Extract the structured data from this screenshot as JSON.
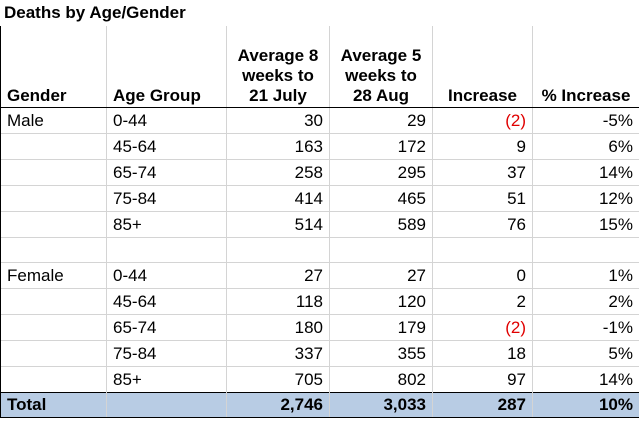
{
  "title": "Deaths by Age/Gender",
  "headers": {
    "gender": "Gender",
    "age_group": "Age Group",
    "avg8": [
      "Average 8",
      "weeks to",
      "21 July"
    ],
    "avg5": [
      "Average 5",
      "weeks to",
      "28 Aug"
    ],
    "increase": "Increase",
    "pct_increase": "% Increase"
  },
  "rows": [
    {
      "gender": "Male",
      "age": "0-44",
      "avg8": "30",
      "avg5": "29",
      "increase": "(2)",
      "pct": "-5%"
    },
    {
      "gender": "",
      "age": "45-64",
      "avg8": "163",
      "avg5": "172",
      "increase": "9",
      "pct": "6%"
    },
    {
      "gender": "",
      "age": "65-74",
      "avg8": "258",
      "avg5": "295",
      "increase": "37",
      "pct": "14%"
    },
    {
      "gender": "",
      "age": "75-84",
      "avg8": "414",
      "avg5": "465",
      "increase": "51",
      "pct": "12%"
    },
    {
      "gender": "",
      "age": "85+",
      "avg8": "514",
      "avg5": "589",
      "increase": "76",
      "pct": "15%"
    },
    {
      "gender": "Female",
      "age": "0-44",
      "avg8": "27",
      "avg5": "27",
      "increase": "0",
      "pct": "1%"
    },
    {
      "gender": "",
      "age": "45-64",
      "avg8": "118",
      "avg5": "120",
      "increase": "2",
      "pct": "2%"
    },
    {
      "gender": "",
      "age": "65-74",
      "avg8": "180",
      "avg5": "179",
      "increase": "(2)",
      "pct": "-1%"
    },
    {
      "gender": "",
      "age": "75-84",
      "avg8": "337",
      "avg5": "355",
      "increase": "18",
      "pct": "5%"
    },
    {
      "gender": "",
      "age": "85+",
      "avg8": "705",
      "avg5": "802",
      "increase": "97",
      "pct": "14%"
    }
  ],
  "total": {
    "label": "Total",
    "avg8": "2,746",
    "avg5": "3,033",
    "increase": "287",
    "pct": "10%"
  },
  "colors": {
    "negative": "#e00000",
    "total_fill": "#b8cce4",
    "grid": "#d4d4d4"
  }
}
